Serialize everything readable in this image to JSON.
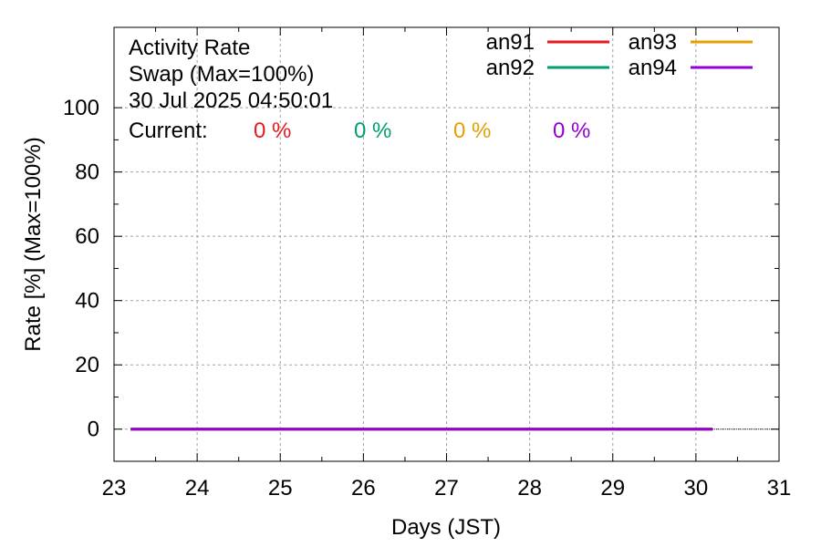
{
  "chart_data": {
    "type": "line",
    "title_lines": [
      "Activity Rate",
      "Swap (Max=100%)",
      "30 Jul 2025 04:50:01"
    ],
    "current_label": "Current:",
    "xlabel": "Days (JST)",
    "ylabel": "Rate [%]  (Max=100%)",
    "xlim": [
      23,
      31
    ],
    "ylim": [
      -10,
      125
    ],
    "x_ticks": [
      23,
      24,
      25,
      26,
      27,
      28,
      29,
      30,
      31
    ],
    "y_ticks": [
      0,
      20,
      40,
      60,
      80,
      100
    ],
    "grid": true,
    "legend_position": "top-right",
    "series": [
      {
        "name": "an91",
        "color": "#e41a1c",
        "current": "0 %",
        "x": [
          23.2,
          30.2
        ],
        "values": [
          0,
          0
        ]
      },
      {
        "name": "an92",
        "color": "#009e73",
        "current": "0 %",
        "x": [
          23.2,
          30.2
        ],
        "values": [
          0,
          0
        ]
      },
      {
        "name": "an93",
        "color": "#e69f00",
        "current": "0 %",
        "x": [
          23.2,
          30.2
        ],
        "values": [
          0,
          0
        ]
      },
      {
        "name": "an94",
        "color": "#9400d3",
        "current": "0 %",
        "x": [
          23.2,
          30.2
        ],
        "values": [
          0,
          0
        ]
      }
    ]
  }
}
